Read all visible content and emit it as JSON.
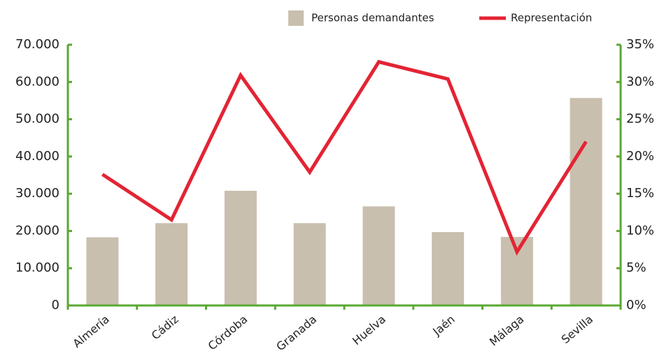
{
  "chart_data": {
    "type": "bar-line",
    "categories": [
      "Almería",
      "Cádiz",
      "Córdoba",
      "Granada",
      "Huelva",
      "Jaén",
      "Málaga",
      "Sevilla"
    ],
    "series": [
      {
        "name": "Personas demandantes",
        "type": "bar",
        "color": "#c9bfae",
        "values": [
          18300,
          22100,
          30800,
          22100,
          26600,
          19700,
          18400,
          55700
        ]
      },
      {
        "name": "Representación",
        "type": "line",
        "axis": "y2",
        "color": "#e32434",
        "values": [
          17.6,
          11.5,
          30.9,
          17.9,
          32.7,
          30.4,
          7.2,
          22
        ]
      }
    ],
    "ylim": [
      0,
      70000
    ],
    "yticks": [
      0,
      {
        "value": 10000,
        "label": "10.000"
      },
      {
        "value": 20000,
        "label": "20.000"
      },
      {
        "value": 30000,
        "label": "30.000"
      },
      {
        "value": 40000,
        "label": "40.000"
      },
      {
        "value": 50000,
        "label": "50.000"
      },
      {
        "value": 60000,
        "label": "60.000"
      },
      {
        "value": 70000,
        "label": "70.000"
      }
    ],
    "y2lim": [
      0,
      35
    ],
    "y2ticks": [
      {
        "value": 0,
        "label": "0%"
      },
      {
        "value": 5,
        "label": "5%"
      },
      {
        "value": 10,
        "label": "10%"
      },
      {
        "value": 15,
        "label": "15%"
      },
      {
        "value": 20,
        "label": "20%"
      },
      {
        "value": 25,
        "label": "25%"
      },
      {
        "value": 30,
        "label": "30%"
      },
      {
        "value": 35,
        "label": "35%"
      }
    ],
    "axis_color": "#5aa832",
    "legend": "top-right"
  }
}
